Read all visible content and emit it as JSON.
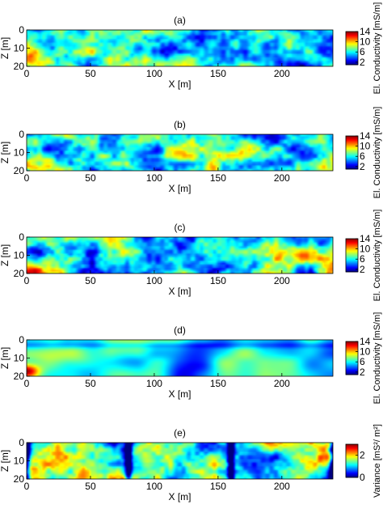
{
  "chart_data": [
    {
      "type": "heatmap",
      "title": "(a)",
      "xlabel": "X [m]",
      "ylabel": "Z [m]",
      "xlim": [
        0,
        240
      ],
      "ylim": [
        20,
        0
      ],
      "xticks": [
        "0",
        "50",
        "100",
        "150",
        "200"
      ],
      "yticks": [
        "0",
        "10",
        "20"
      ],
      "colorbar": {
        "label": "El. Conductivity [mS/m]",
        "range": [
          1,
          14
        ],
        "ticks": [
          "14",
          "10",
          "6",
          "2"
        ]
      },
      "grid": false
    },
    {
      "type": "heatmap",
      "title": "(b)",
      "xlabel": "X [m]",
      "ylabel": "Z [m]",
      "xlim": [
        0,
        240
      ],
      "ylim": [
        20,
        0
      ],
      "xticks": [
        "0",
        "50",
        "100",
        "150",
        "200"
      ],
      "yticks": [
        "0",
        "10",
        "20"
      ],
      "colorbar": {
        "label": "El. Conductivity [mS/m]",
        "range": [
          1,
          14
        ],
        "ticks": [
          "14",
          "10",
          "6",
          "2"
        ]
      },
      "grid": false
    },
    {
      "type": "heatmap",
      "title": "(c)",
      "xlabel": "X [m]",
      "ylabel": "Z [m]",
      "xlim": [
        0,
        240
      ],
      "ylim": [
        20,
        0
      ],
      "xticks": [
        "0",
        "50",
        "100",
        "150",
        "200"
      ],
      "yticks": [
        "0",
        "10",
        "20"
      ],
      "colorbar": {
        "label": "El. Conductivity [mS/m]",
        "range": [
          1,
          14
        ],
        "ticks": [
          "14",
          "10",
          "6",
          "2"
        ]
      },
      "grid": false
    },
    {
      "type": "heatmap",
      "title": "(d)",
      "xlabel": "X [m]",
      "ylabel": "Z [m]",
      "xlim": [
        0,
        240
      ],
      "ylim": [
        20,
        0
      ],
      "xticks": [
        "0",
        "50",
        "100",
        "150",
        "200"
      ],
      "yticks": [
        "0",
        "10",
        "20"
      ],
      "colorbar": {
        "label": "El. Conductivity [mS/m]",
        "range": [
          1,
          14
        ],
        "ticks": [
          "14",
          "10",
          "6",
          "2"
        ]
      },
      "grid": false
    },
    {
      "type": "heatmap",
      "title": "(e)",
      "xlabel": "X [m]",
      "ylabel": "Z [m]",
      "xlim": [
        0,
        240
      ],
      "ylim": [
        20,
        0
      ],
      "xticks": [
        "0",
        "50",
        "100",
        "150",
        "200"
      ],
      "yticks": [
        "0",
        "10",
        "20"
      ],
      "colorbar": {
        "label": "Variance [mS²/ m²]",
        "range": [
          0,
          3
        ],
        "ticks": [
          "2",
          "0"
        ]
      },
      "grid": false
    }
  ]
}
